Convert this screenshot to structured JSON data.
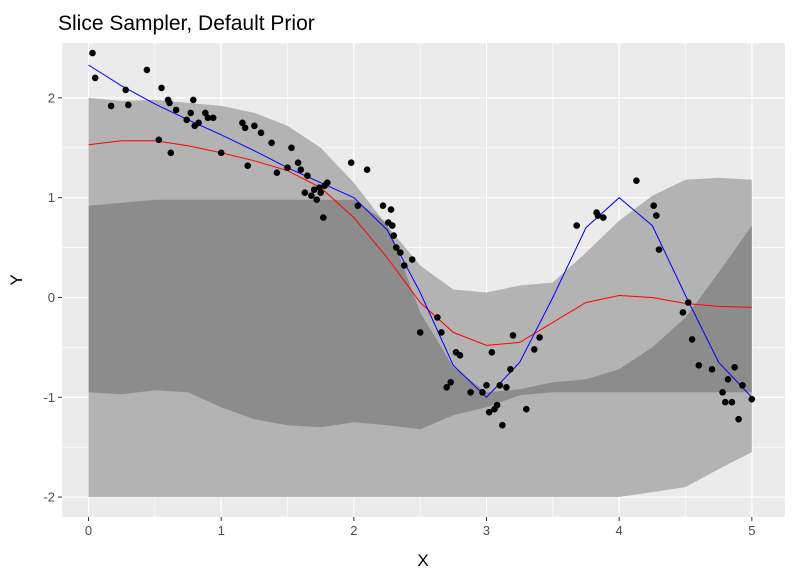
{
  "chart_data": {
    "type": "scatter",
    "title": "Slice Sampler, Default Prior",
    "xlabel": "X",
    "ylabel": "Y",
    "xlim": [
      -0.2,
      5.25
    ],
    "ylim": [
      -2.2,
      2.55
    ],
    "x_ticks": [
      0,
      1,
      2,
      3,
      4,
      5
    ],
    "y_ticks": [
      -2,
      -1,
      0,
      1,
      2
    ],
    "x_tick_labels": [
      "0",
      "1",
      "2",
      "3",
      "4",
      "5"
    ],
    "y_tick_labels": [
      "-2",
      "-1",
      "0",
      "1",
      "2"
    ],
    "grid": true,
    "legend": "none",
    "colors": {
      "panel": "#ebebeb",
      "grid": "#ffffff",
      "band": "#b3b3b3",
      "band_overlap": "#8c8c8c",
      "points": "#000000",
      "mean_line": "#ff0000",
      "true_line": "#0000ff"
    },
    "bands": [
      {
        "x": [
          0,
          0.25,
          0.5,
          0.75,
          1.0,
          1.25,
          1.5,
          1.75,
          2.0,
          2.25,
          2.5,
          2.75,
          3.0,
          3.25,
          3.5,
          3.75,
          4.0,
          4.25,
          4.5,
          4.75,
          5.0
        ],
        "upper": [
          2.0,
          1.97,
          1.98,
          1.95,
          1.92,
          1.85,
          1.72,
          1.5,
          1.15,
          0.72,
          0.32,
          0.08,
          0.05,
          0.12,
          0.15,
          0.45,
          0.77,
          1.02,
          1.18,
          1.2,
          1.18
        ],
        "lower": [
          -0.95,
          -0.97,
          -0.93,
          -0.95,
          -1.1,
          -1.22,
          -1.28,
          -1.3,
          -1.25,
          -1.28,
          -1.32,
          -1.18,
          -1.1,
          -0.98,
          -0.95,
          -0.95,
          -0.95,
          -0.95,
          -0.95,
          -0.95,
          -0.95
        ]
      },
      {
        "x": [
          0,
          0.25,
          0.5,
          0.75,
          1.0,
          1.25,
          1.5,
          1.75,
          2.0,
          2.25,
          2.5,
          2.75,
          3.0,
          3.25,
          3.5,
          3.75,
          4.0,
          4.25,
          4.5,
          4.75,
          5.0
        ],
        "upper": [
          0.92,
          0.95,
          0.98,
          0.98,
          0.98,
          0.98,
          0.98,
          0.98,
          0.98,
          0.75,
          -0.15,
          -0.7,
          -0.95,
          -0.92,
          -0.85,
          -0.82,
          -0.72,
          -0.5,
          -0.2,
          0.25,
          0.72
        ],
        "lower": [
          -2.0,
          -2.0,
          -2.0,
          -2.0,
          -2.0,
          -2.0,
          -2.0,
          -2.0,
          -2.0,
          -2.0,
          -2.0,
          -2.0,
          -2.0,
          -2.0,
          -2.0,
          -2.0,
          -2.0,
          -1.95,
          -1.9,
          -1.72,
          -1.55
        ]
      }
    ],
    "series": [
      {
        "name": "",
        "color": "#ff0000",
        "x": [
          0,
          0.25,
          0.5,
          0.75,
          1.0,
          1.25,
          1.5,
          1.75,
          2.0,
          2.25,
          2.5,
          2.75,
          3.0,
          3.25,
          3.5,
          3.75,
          4.0,
          4.25,
          4.5,
          4.75,
          5.0
        ],
        "y": [
          1.53,
          1.57,
          1.57,
          1.52,
          1.45,
          1.37,
          1.27,
          1.1,
          0.8,
          0.4,
          -0.05,
          -0.35,
          -0.48,
          -0.45,
          -0.25,
          -0.05,
          0.02,
          0.0,
          -0.06,
          -0.09,
          -0.1
        ]
      },
      {
        "name": "",
        "color": "#0000ff",
        "x": [
          0,
          0.25,
          0.5,
          0.75,
          1.0,
          1.25,
          1.5,
          1.75,
          2.0,
          2.25,
          2.5,
          2.75,
          3.0,
          3.25,
          3.5,
          3.75,
          4.0,
          4.25,
          4.5,
          4.75,
          5.0
        ],
        "y": [
          2.33,
          2.12,
          1.94,
          1.78,
          1.63,
          1.47,
          1.3,
          1.15,
          1.0,
          0.68,
          0.05,
          -0.68,
          -1.0,
          -0.65,
          0.0,
          0.7,
          1.0,
          0.72,
          0.02,
          -0.65,
          -1.0
        ]
      }
    ],
    "points": {
      "x": [
        0.03,
        0.05,
        0.17,
        0.28,
        0.3,
        0.44,
        0.53,
        0.55,
        0.6,
        0.61,
        0.62,
        0.66,
        0.74,
        0.77,
        0.79,
        0.8,
        0.83,
        0.88,
        0.9,
        0.94,
        1.0,
        1.16,
        1.18,
        1.2,
        1.25,
        1.3,
        1.38,
        1.42,
        1.5,
        1.53,
        1.58,
        1.6,
        1.63,
        1.65,
        1.68,
        1.7,
        1.72,
        1.74,
        1.75,
        1.77,
        1.78,
        1.8,
        1.98,
        2.03,
        2.1,
        2.22,
        2.26,
        2.28,
        2.29,
        2.3,
        2.32,
        2.35,
        2.38,
        2.44,
        2.5,
        2.63,
        2.66,
        2.7,
        2.73,
        2.77,
        2.8,
        2.88,
        2.97,
        3.0,
        3.02,
        3.04,
        3.06,
        3.08,
        3.1,
        3.12,
        3.15,
        3.18,
        3.2,
        3.3,
        3.36,
        3.4,
        3.68,
        3.83,
        3.84,
        3.88,
        4.13,
        4.26,
        4.28,
        4.3,
        4.48,
        4.52,
        4.55,
        4.6,
        4.7,
        4.78,
        4.8,
        4.82,
        4.85,
        4.87,
        4.9,
        4.93,
        5.0
      ],
      "y": [
        2.45,
        2.2,
        1.92,
        2.08,
        1.93,
        2.28,
        1.58,
        2.1,
        1.98,
        1.95,
        1.45,
        1.88,
        1.78,
        1.85,
        1.98,
        1.72,
        1.75,
        1.85,
        1.8,
        1.8,
        1.45,
        1.75,
        1.7,
        1.32,
        1.72,
        1.65,
        1.55,
        1.25,
        1.3,
        1.5,
        1.35,
        1.28,
        1.05,
        1.22,
        1.02,
        1.08,
        0.98,
        1.1,
        1.05,
        0.8,
        1.12,
        1.15,
        1.35,
        0.92,
        1.28,
        0.92,
        0.75,
        0.88,
        0.72,
        0.62,
        0.5,
        0.45,
        0.32,
        0.38,
        -0.35,
        -0.2,
        -0.35,
        -0.9,
        -0.85,
        -0.55,
        -0.58,
        -0.95,
        -0.95,
        -0.88,
        -1.15,
        -0.55,
        -1.12,
        -1.08,
        -0.88,
        -1.28,
        -0.9,
        -0.72,
        -0.38,
        -1.12,
        -0.52,
        -0.4,
        0.72,
        0.85,
        0.82,
        0.8,
        1.17,
        0.92,
        0.82,
        0.48,
        -0.15,
        -0.05,
        -0.42,
        -0.68,
        -0.72,
        -0.95,
        -1.05,
        -0.82,
        -1.05,
        -0.7,
        -1.22,
        -0.88,
        -1.02
      ]
    }
  }
}
